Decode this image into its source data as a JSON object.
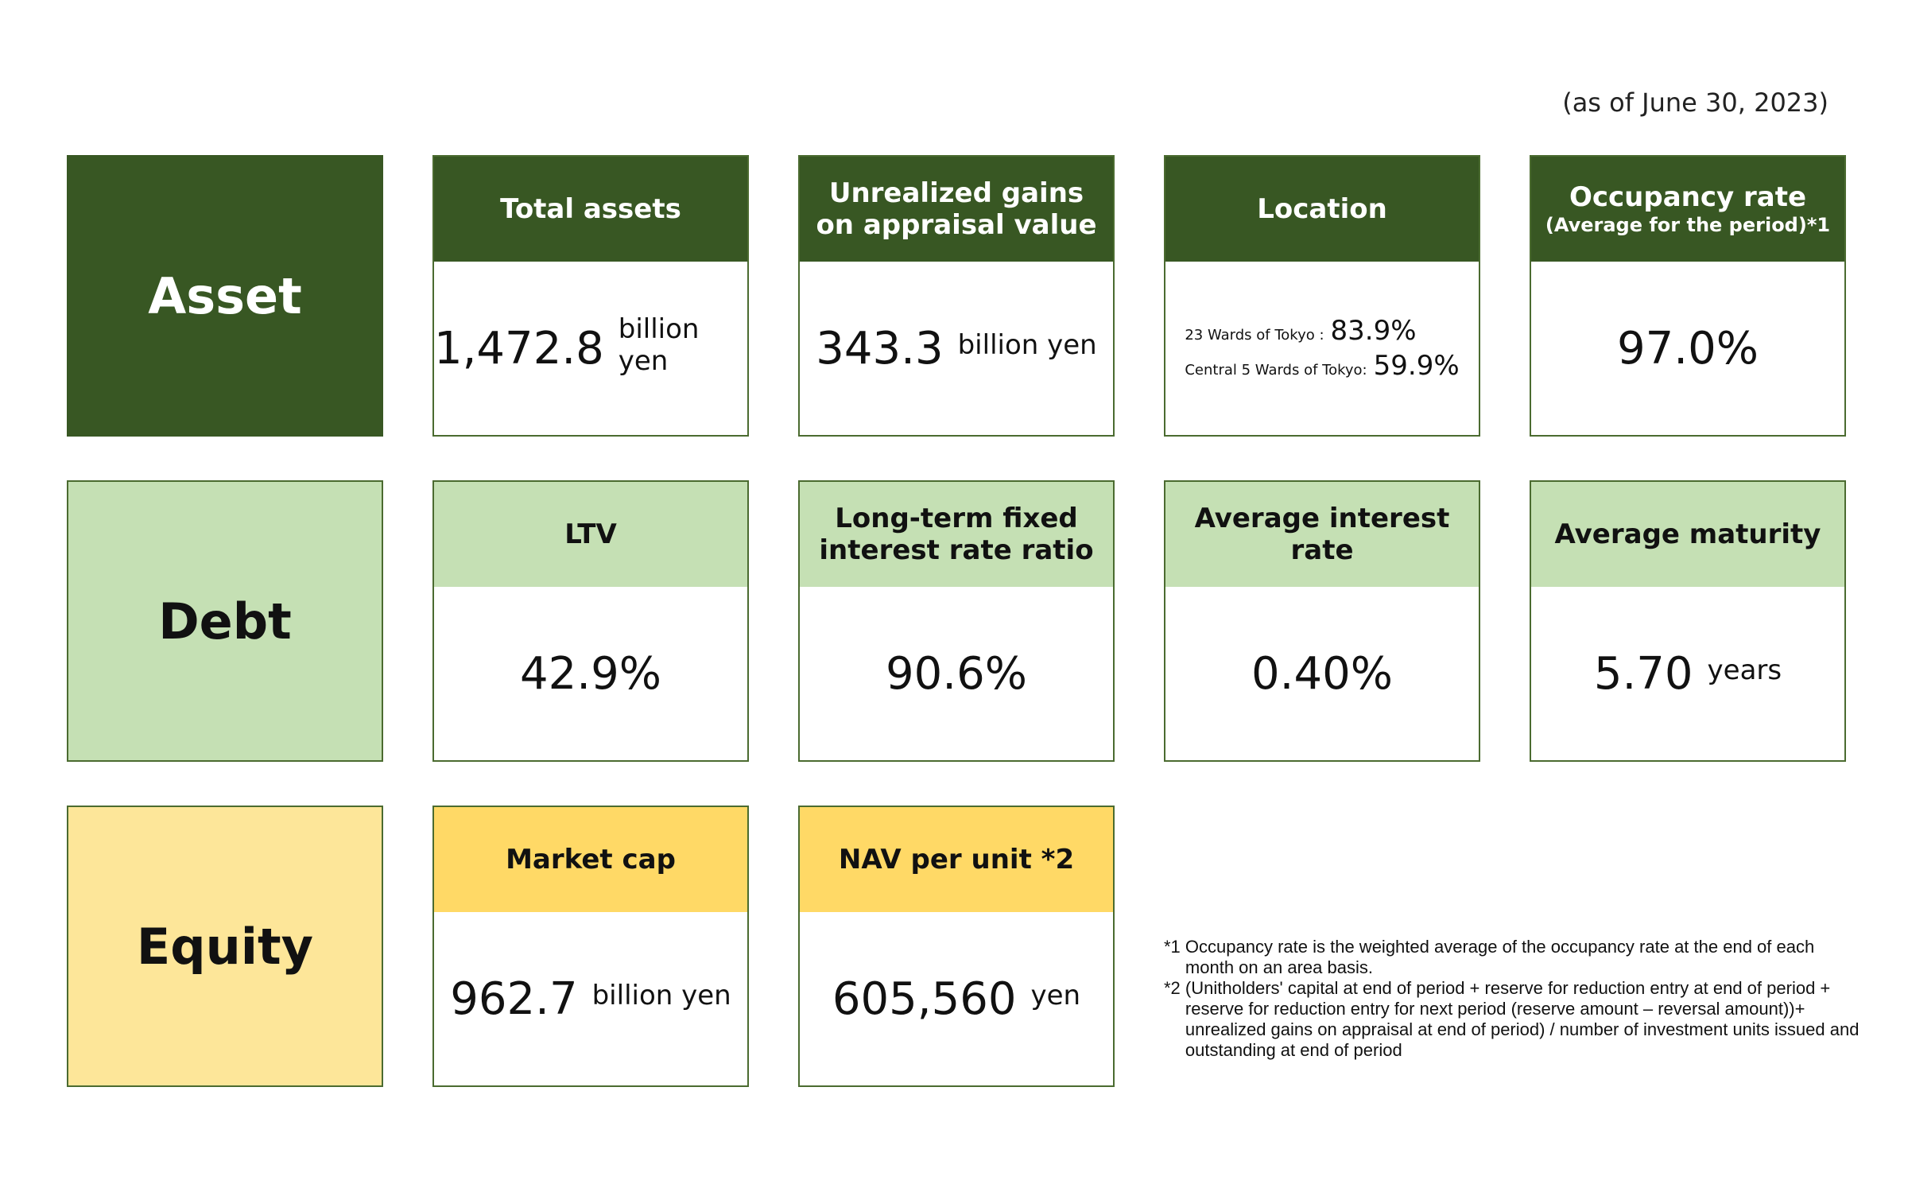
{
  "as_of": "(as of June 30, 2023)",
  "rows": {
    "asset": {
      "label": "Asset",
      "total_assets": {
        "title": "Total assets",
        "value": "1,472.8",
        "unit": "billion yen"
      },
      "unrealized": {
        "title_line1": "Unrealized gains",
        "title_line2": "on appraisal value",
        "value": "343.3",
        "unit": "billion yen"
      },
      "location": {
        "title": "Location",
        "row1_label": "23 Wards of Tokyo :",
        "row1_value": "83.9%",
        "row2_label": "Central 5 Wards of Tokyo:",
        "row2_value": "59.9%"
      },
      "occupancy": {
        "title": "Occupancy rate",
        "subtitle": "(Average for the period)*1",
        "value": "97.0%"
      }
    },
    "debt": {
      "label": "Debt",
      "ltv": {
        "title": "LTV",
        "value": "42.9%"
      },
      "fixed_ratio": {
        "title_line1": "Long-term fixed",
        "title_line2": "interest rate ratio",
        "value": "90.6%"
      },
      "avg_interest": {
        "title": "Average interest rate",
        "value": "0.40%"
      },
      "avg_maturity": {
        "title": "Average maturity",
        "value": "5.70",
        "unit": "years"
      }
    },
    "equity": {
      "label": "Equity",
      "market_cap": {
        "title": "Market cap",
        "value": "962.7",
        "unit": "billion yen"
      },
      "nav": {
        "title": "NAV per unit *2",
        "value": "605,560",
        "unit": "yen"
      }
    }
  },
  "notes": {
    "n1_mark": "*1 ",
    "n1_text": "Occupancy rate is the weighted average of the occupancy rate at the end of each month on an area basis.",
    "n2_mark": "*2 ",
    "n2_text": "(Unitholders' capital at end of period + reserve for reduction entry at end of period + reserve for reduction entry for next period (reserve amount – reversal amount))+ unrealized gains on appraisal at end of period) / number of investment units issued and outstanding at end of period"
  },
  "colors": {
    "asset_green": "#385723",
    "debt_green": "#c5e0b4",
    "equity_yellow": "#ffd966",
    "equity_label_yellow": "#fde699"
  }
}
